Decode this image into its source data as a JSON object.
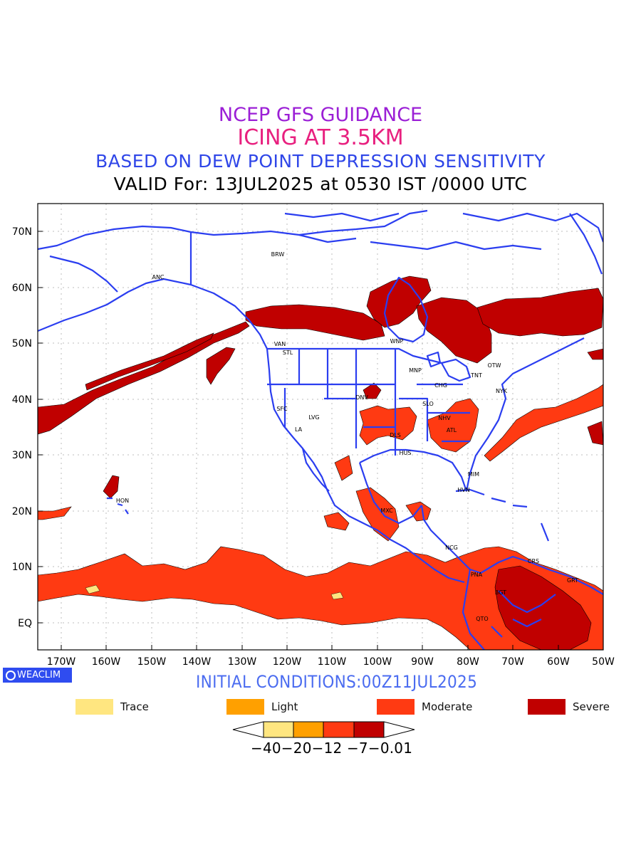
{
  "titles": {
    "line1": "NCEP GFS GUIDANCE",
    "line2": "ICING AT 3.5KM",
    "line3": "BASED ON DEW POINT DEPRESSION SENSITIVITY",
    "line4": "VALID For: 13JUL2025 at 0530 IST /0000 UTC"
  },
  "map": {
    "lat_labels": [
      "70N",
      "60N",
      "50N",
      "40N",
      "30N",
      "20N",
      "10N",
      "EQ"
    ],
    "lon_labels": [
      "170W",
      "160W",
      "150W",
      "140W",
      "130W",
      "120W",
      "110W",
      "100W",
      "90W",
      "80W",
      "70W",
      "60W",
      "50W"
    ],
    "stations": [
      "BRW",
      "ANC",
      "VAN",
      "STL",
      "WNP",
      "MNP",
      "TNT",
      "OTW",
      "NYK",
      "CHG",
      "SFC",
      "LVG",
      "LA",
      "DNV",
      "SLO",
      "NHV",
      "ATL",
      "HUS",
      "DLS",
      "MIM",
      "HVN",
      "MXC",
      "HON",
      "NCG",
      "PNA",
      "CRS",
      "BGT",
      "QTO",
      "GRT"
    ],
    "colors": {
      "coast": "#2b3ef0",
      "grid": "#bcbcbc",
      "trace": "#ffe680",
      "light": "#ffa000",
      "moderate": "#ff3a12",
      "severe": "#c00000"
    }
  },
  "badge": "WEACLIM",
  "initial_conditions": "INITIAL CONDITIONS:00Z11JUL2025",
  "legend": [
    {
      "label": "Trace",
      "color": "#ffe680"
    },
    {
      "label": "Light",
      "color": "#ffa000"
    },
    {
      "label": "Moderate",
      "color": "#ff3a12"
    },
    {
      "label": "Severe",
      "color": "#c00000"
    }
  ],
  "colorbar": {
    "colors": [
      "#ffe680",
      "#ffa000",
      "#ff3a12",
      "#c00000"
    ],
    "labels_text": "−40−20−12 −7−0.01"
  }
}
